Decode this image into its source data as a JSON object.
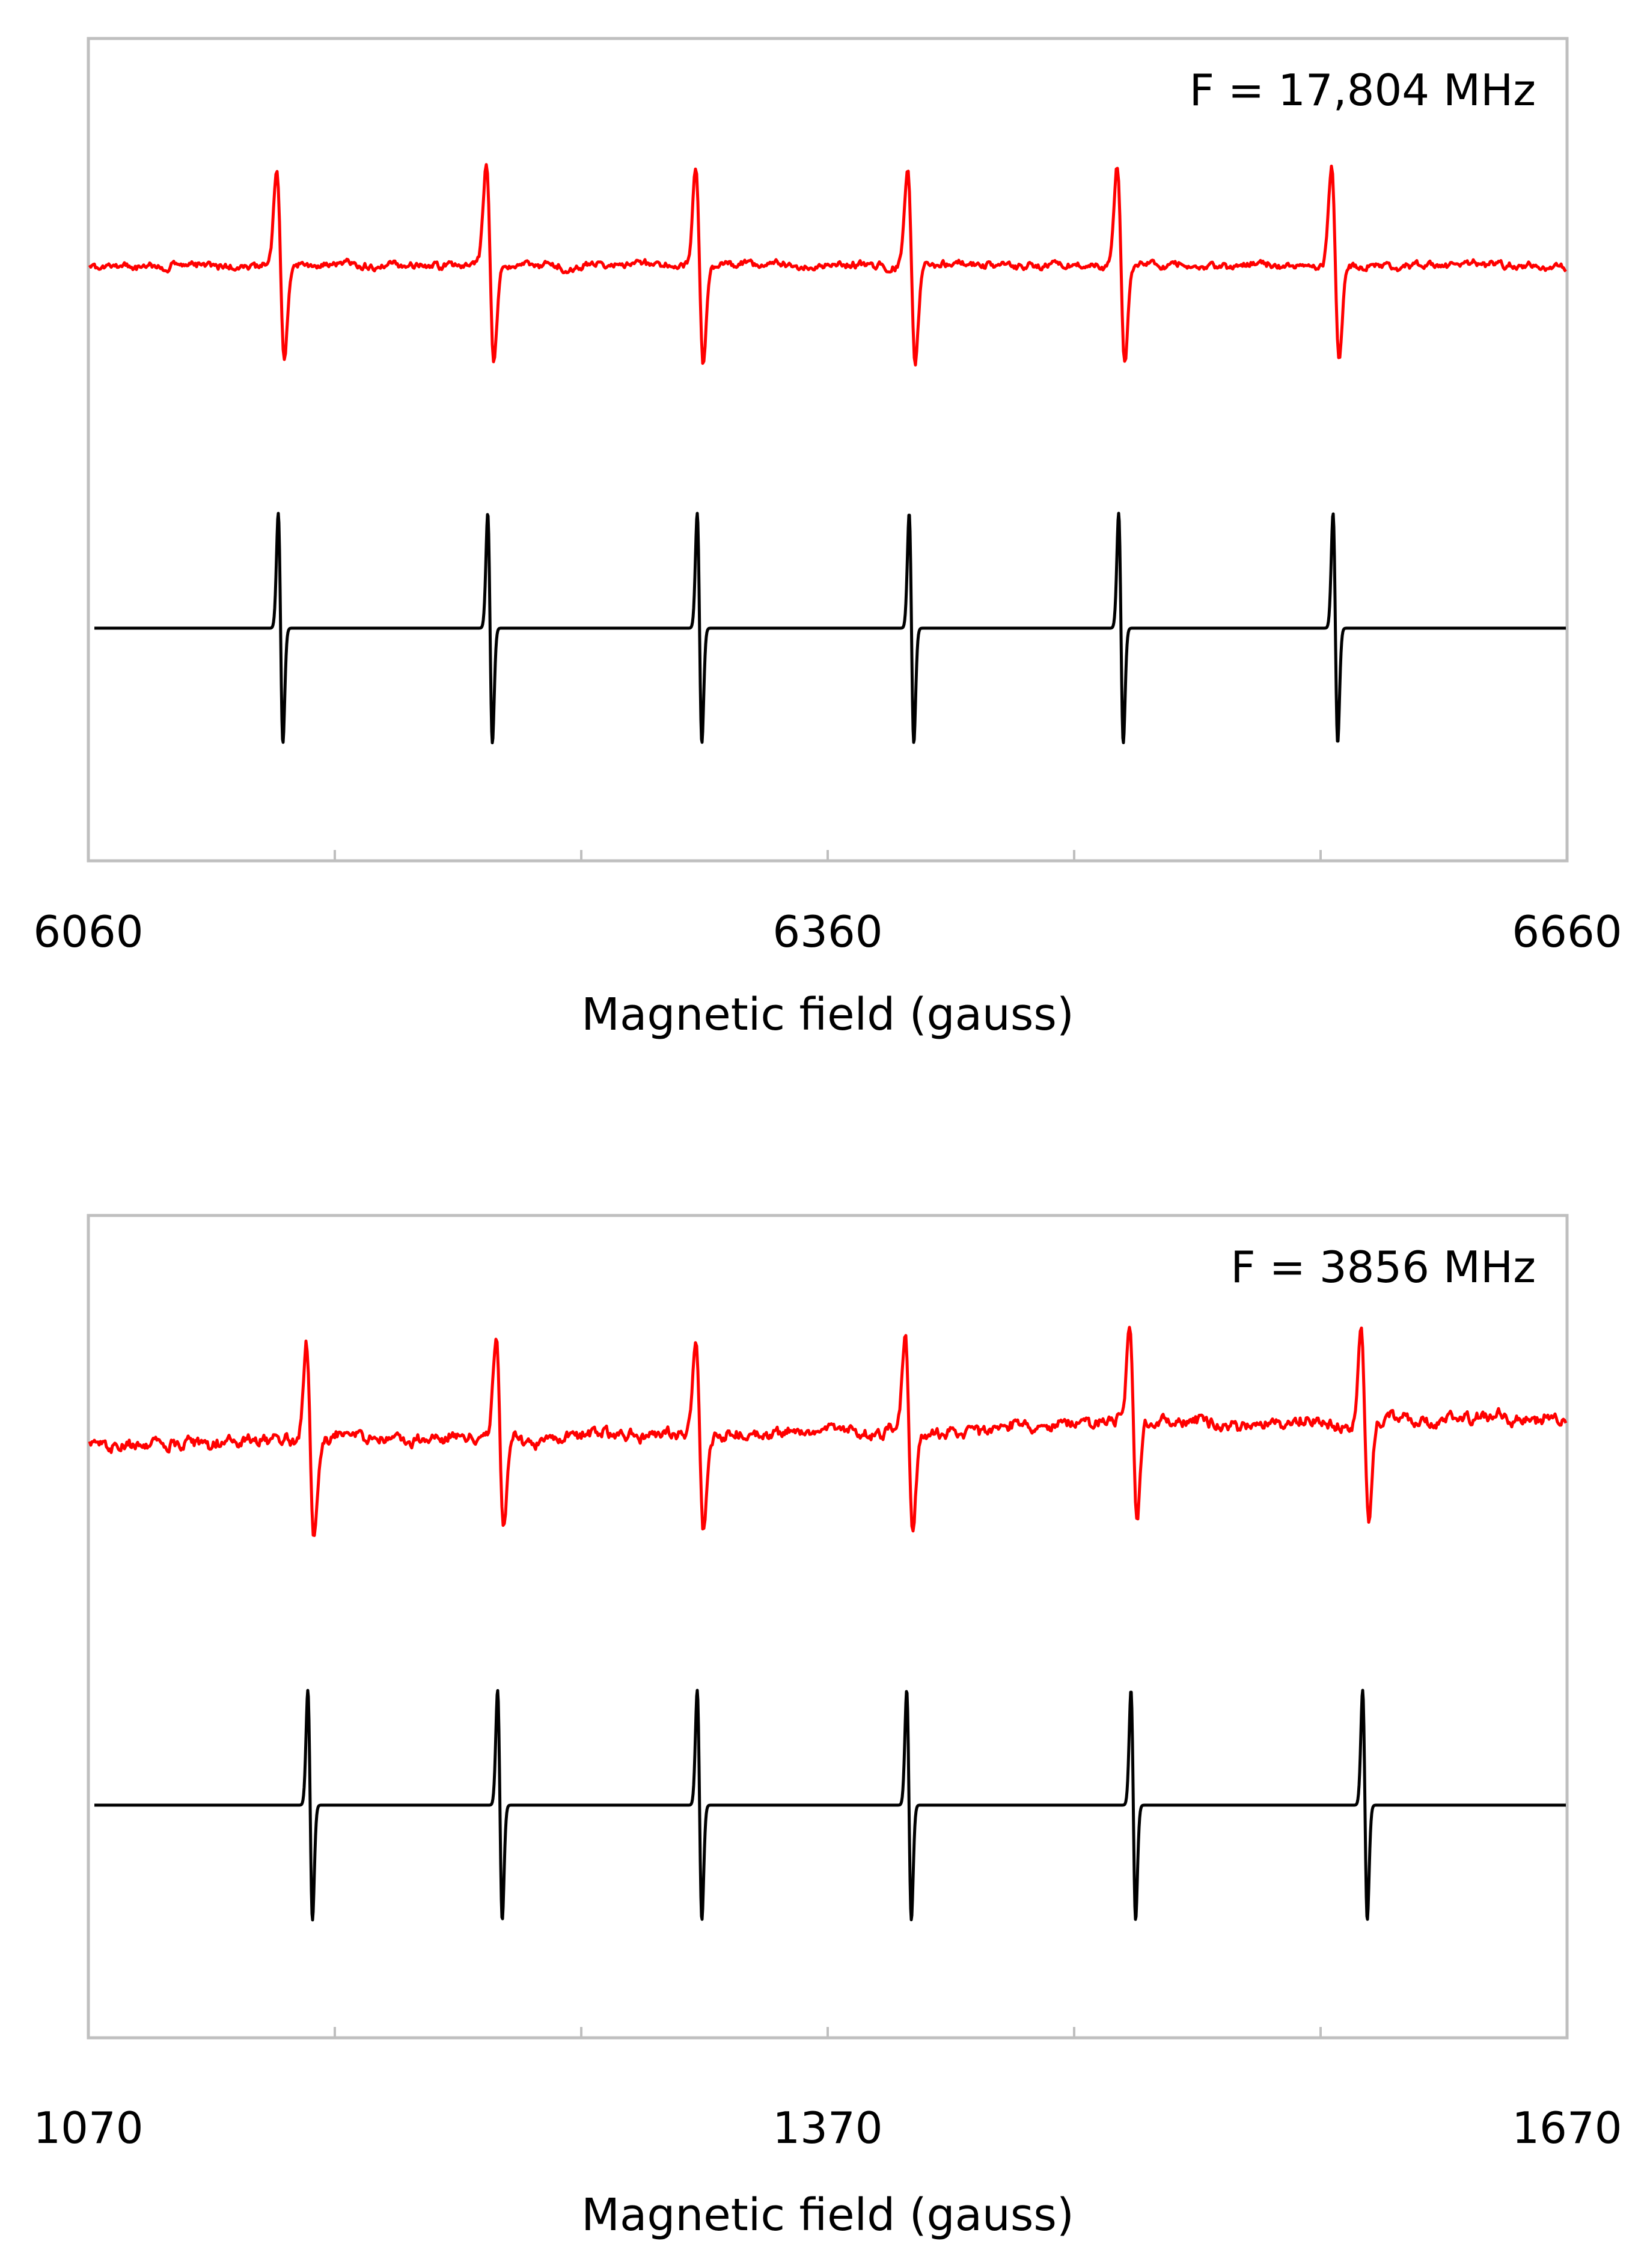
{
  "chart_data": [
    {
      "type": "line",
      "title": "",
      "xlabel": "Magnetic field (gauss)",
      "ylabel": "",
      "xlim": [
        6060,
        6660
      ],
      "x_ticks": [
        6060,
        6160,
        6260,
        6360,
        6460,
        6560,
        6660
      ],
      "x_tick_labels": [
        "6060",
        "",
        "",
        "6360",
        "",
        "",
        "6660"
      ],
      "annotation": "F = 17,804 MHz",
      "grid": false,
      "legend": "none",
      "lines_at_field": [
        6138,
        6223,
        6308,
        6394,
        6479,
        6566
      ],
      "series": [
        {
          "color": "#ff0000",
          "style": "experimental"
        },
        {
          "color": "#000000",
          "style": "simulated"
        }
      ]
    },
    {
      "type": "line",
      "title": "",
      "xlabel": "Magnetic field (gauss)",
      "ylabel": "",
      "xlim": [
        1070,
        1670
      ],
      "x_ticks": [
        1070,
        1170,
        1270,
        1370,
        1470,
        1570,
        1670
      ],
      "x_tick_labels": [
        "1070",
        "",
        "",
        "1370",
        "",
        "",
        "1670"
      ],
      "annotation": "F = 3856 MHz",
      "grid": false,
      "legend": "none",
      "lines_at_field": [
        1160,
        1237,
        1318,
        1403,
        1494,
        1588
      ],
      "series": [
        {
          "color": "#ff0000",
          "style": "experimental"
        },
        {
          "color": "#000000",
          "style": "simulated"
        }
      ]
    }
  ]
}
